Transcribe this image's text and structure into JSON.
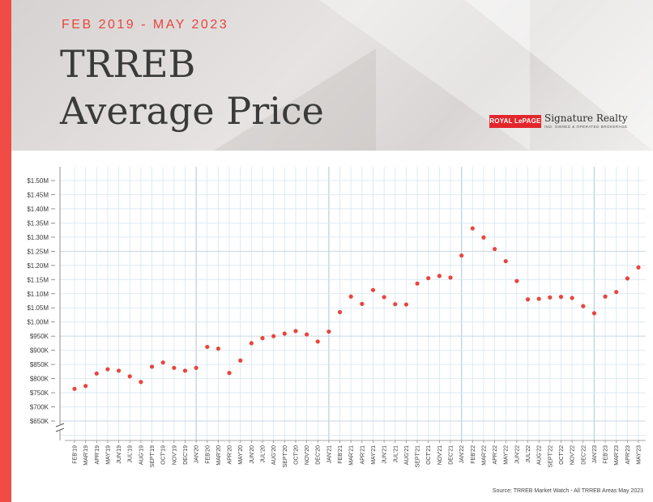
{
  "header": {
    "subtitle": "FEB 2019 - MAY 2023",
    "title_line1": "TRREB",
    "title_line2": "Average Price"
  },
  "logo": {
    "brand": "ROYAL LePAGE",
    "name": "Signature Realty",
    "tagline": "IND. OWNED & OPERATED BROKERAGE"
  },
  "source": "Source: TRREB Market Watch - All TRREB Areas May 2023",
  "colors": {
    "accent": "#f04b45",
    "point": "#e8453c",
    "grid": "#d6e6f2",
    "major_grid": "#b9cfe0",
    "text": "#3a3a3a"
  },
  "chart_data": {
    "type": "scatter",
    "y_ticks": [
      "$650K",
      "$700K",
      "$750K",
      "$800K",
      "$850K",
      "$900K",
      "$950K",
      "$1.00M",
      "$1.05M",
      "$1.10M",
      "$1.15M",
      "$1.20M",
      "$1.25M",
      "$1.30M",
      "$1.35M",
      "$1.40M",
      "$1.45M",
      "$1.50M"
    ],
    "ylim": [
      650000,
      1500000
    ],
    "axis_break": true,
    "grid": true,
    "categories": [
      "FEB'19",
      "MAR'19",
      "APR'19",
      "MAY'19",
      "JUN'19",
      "JUL'19",
      "AUG'19",
      "SEPT'19",
      "OCT'19",
      "NOV'19",
      "DEC'19",
      "JAN'20",
      "FEB'20",
      "MAR'20",
      "APR'20",
      "MAY'20",
      "JUN'20",
      "JUL'20",
      "AUG'20",
      "SEPT'20",
      "OCT'20",
      "NOV'20",
      "DEC'20",
      "JAN'21",
      "FEB'21",
      "MAR'21",
      "APR'21",
      "MAY'21",
      "JUN'21",
      "JUL'21",
      "AUG'21",
      "SEPT'21",
      "OCT'21",
      "NOV'21",
      "DEC'21",
      "JAN'22",
      "FEB'22",
      "MAR'22",
      "APR'22",
      "MAY'22",
      "JUN'22",
      "JUL'22",
      "AUG'22",
      "SEPT'22",
      "OCT'22",
      "NOV'22",
      "DEC'22",
      "JAN'23",
      "FEB'23",
      "MAR'23",
      "APR'23",
      "MAY'23"
    ],
    "values": [
      764000,
      774000,
      818000,
      833000,
      828000,
      808000,
      788000,
      842000,
      857000,
      838000,
      828000,
      838000,
      912000,
      906000,
      820000,
      864000,
      925000,
      943000,
      950000,
      959000,
      968000,
      956000,
      931000,
      966000,
      1035000,
      1090000,
      1064000,
      1113000,
      1088000,
      1063000,
      1062000,
      1136000,
      1155000,
      1163000,
      1157000,
      1235000,
      1331000,
      1299000,
      1258000,
      1215000,
      1145000,
      1080000,
      1082000,
      1087000,
      1089000,
      1085000,
      1056000,
      1031000,
      1090000,
      1106000,
      1154000,
      1193000
    ]
  }
}
